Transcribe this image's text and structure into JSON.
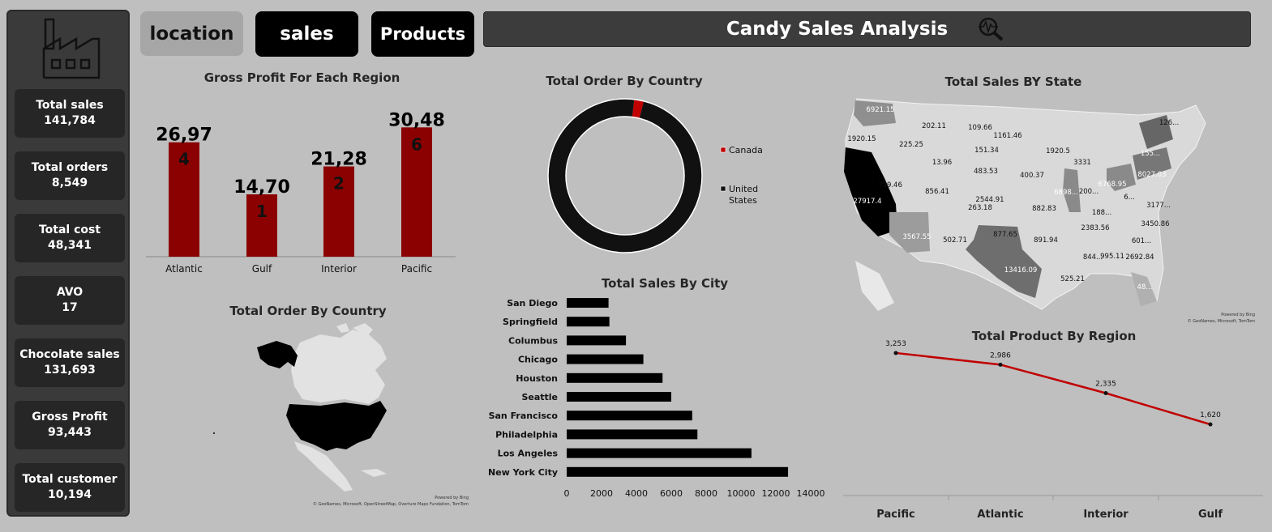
{
  "header": {
    "nav": {
      "location": "location",
      "sales": "sales",
      "products": "Products"
    },
    "title": "Candy Sales Analysis"
  },
  "kpis": [
    {
      "label": "Total sales",
      "value": "141,784"
    },
    {
      "label": "Total orders",
      "value": "8,549"
    },
    {
      "label": "Total cost",
      "value": "48,341"
    },
    {
      "label": "AVO",
      "value": "17"
    },
    {
      "label": "Chocolate sales",
      "value": "131,693"
    },
    {
      "label": "Gross Profit",
      "value": "93,443"
    },
    {
      "label": "Total customer",
      "value": "10,194"
    }
  ],
  "colors": {
    "bar": "#8b0000",
    "line": "#c00000",
    "dark": "#111111",
    "sidebar": "#3a3a3a"
  },
  "map_attribution": {
    "powered": "Powered by Bing",
    "na_credits": "© GeoNames, Microsoft, OpenStreetMap, Overture Maps Fundation, TomTom",
    "us_credits": "© GeoNames, Microsoft, TomTom"
  },
  "chart_data": [
    {
      "type": "bar",
      "title": "Gross Profit For Each Region",
      "categories": [
        "Atlantic",
        "Gulf",
        "Interior",
        "Pacific"
      ],
      "values": [
        26974,
        14701,
        21282,
        30486
      ],
      "data_labels": [
        [
          "26,97",
          "4"
        ],
        [
          "14,70",
          "1"
        ],
        [
          "21,28",
          "2"
        ],
        [
          "30,48",
          "6"
        ]
      ],
      "ylim": [
        0,
        31500
      ]
    },
    {
      "type": "pie",
      "title": "Total Order By Country",
      "labels": [
        "Canada",
        "United States"
      ],
      "values": [
        2,
        98
      ],
      "colors": [
        "#c00000",
        "#111111"
      ],
      "legend": "right"
    },
    {
      "type": "bar",
      "orientation": "horizontal",
      "title": "Total Sales By City",
      "categories": [
        "San Diego",
        "Springfield",
        "Columbus",
        "Chicago",
        "Houston",
        "Seattle",
        "San Francisco",
        "Philadelphia",
        "Los Angeles",
        "New York City"
      ],
      "values": [
        2400,
        2450,
        3400,
        4400,
        5500,
        6000,
        7200,
        7500,
        10600,
        12700
      ],
      "xticks": [
        "0",
        "2000",
        "4000",
        "6000",
        "8000",
        "10000",
        "12000",
        "14000"
      ],
      "xlim": [
        0,
        14000
      ]
    },
    {
      "type": "map",
      "title": "Total Order By Country",
      "regions": [
        "United States",
        "Canada"
      ]
    },
    {
      "type": "map",
      "title": "Total Sales BY State",
      "labels": [
        "6921.15",
        "202.11",
        "109.66",
        "126...",
        "1920.15",
        "225.25",
        "1161.46",
        "1920.5",
        "155...",
        "151.34",
        "3331",
        "8027.03",
        "13.96",
        "483.53",
        "400.37",
        "6898...",
        "200...",
        "6768.95",
        "759.46",
        "856.41",
        "2544.91",
        "263.18",
        "882.83",
        "188...",
        "6...",
        "3177...",
        "27917.4",
        "3567.55",
        "502.71",
        "877.65",
        "891.94",
        "2383.56",
        "3450.86",
        "601...",
        "844...",
        "995.11",
        "2692.84",
        "13416.09",
        "525.21",
        "48..."
      ]
    },
    {
      "type": "line",
      "title": "Total Product By Region",
      "categories": [
        "Pacific",
        "Atlantic",
        "Interior",
        "Gulf"
      ],
      "values": [
        3253,
        2986,
        2335,
        1620
      ],
      "data_labels": [
        "3,253",
        "2,986",
        "2,335",
        "1,620"
      ]
    }
  ]
}
